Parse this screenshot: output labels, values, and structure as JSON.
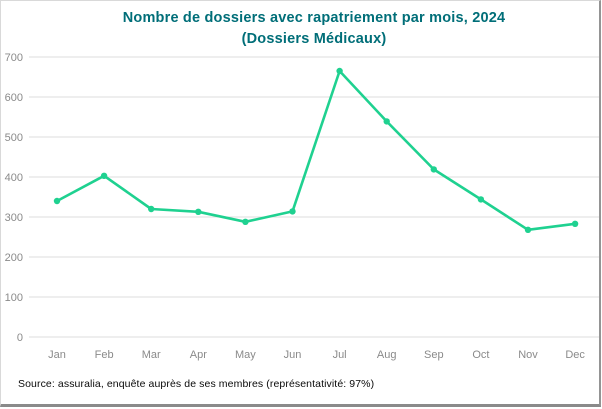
{
  "chart": {
    "title_line1": "Nombre de dossiers avec rapatriement par mois, 2024",
    "title_line2": "(Dossiers Médicaux)",
    "source_note": "Source: assuralia, enquête auprès de ses membres (représentativité: 97%)"
  },
  "chart_data": {
    "type": "line",
    "title": "Nombre de dossiers avec rapatriement par mois, 2024 (Dossiers Médicaux)",
    "categories": [
      "Jan",
      "Feb",
      "Mar",
      "Apr",
      "May",
      "Jun",
      "Jul",
      "Aug",
      "Sep",
      "Oct",
      "Nov",
      "Dec"
    ],
    "values": [
      340,
      403,
      320,
      313,
      288,
      314,
      665,
      539,
      419,
      344,
      268,
      283
    ],
    "xlabel": "",
    "ylabel": "",
    "ylim": [
      0,
      700
    ],
    "y_ticks": [
      0,
      100,
      200,
      300,
      400,
      500,
      600,
      700
    ],
    "grid": true,
    "legend": "none",
    "marker": "circle",
    "colors": {
      "line": "#1fd190",
      "marker": "#1fd190",
      "gridline": "#dedede",
      "tick_label": "#8a8a8a",
      "title": "#006e78",
      "source_text": "#0a0a0a"
    }
  }
}
